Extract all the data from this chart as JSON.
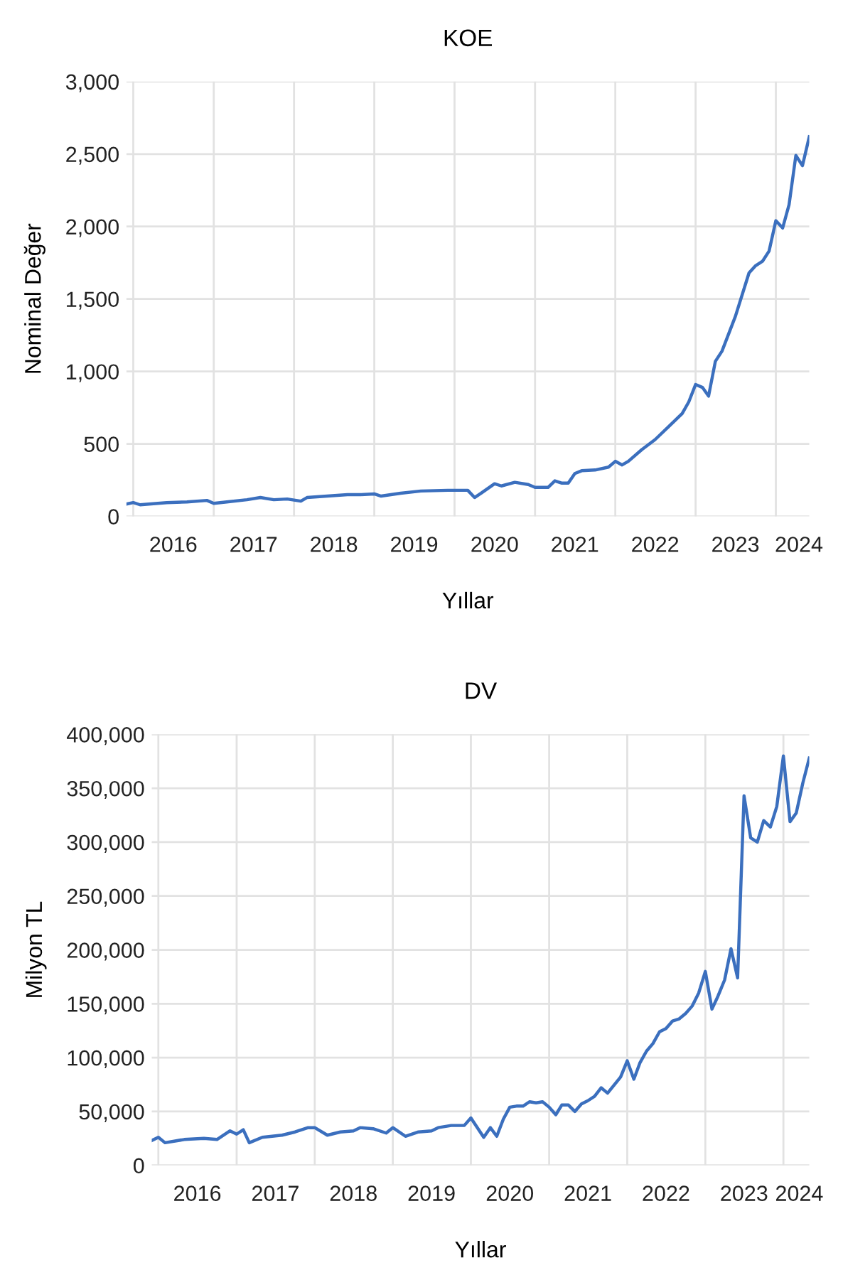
{
  "chart_data": [
    {
      "type": "line",
      "title": "KOE",
      "xlabel": "Yıllar",
      "ylabel": "Nominal Değer",
      "x": [
        "2015-12",
        "2016-01",
        "2016-02",
        "2016-06",
        "2016-09",
        "2016-12",
        "2017-01",
        "2017-03",
        "2017-06",
        "2017-08",
        "2017-10",
        "2017-12",
        "2018-02",
        "2018-03",
        "2018-06",
        "2018-09",
        "2018-11",
        "2019-01",
        "2019-02",
        "2019-05",
        "2019-08",
        "2019-12",
        "2020-03",
        "2020-04",
        "2020-05",
        "2020-07",
        "2020-08",
        "2020-10",
        "2020-12",
        "2021-01",
        "2021-03",
        "2021-04",
        "2021-05",
        "2021-06",
        "2021-07",
        "2021-08",
        "2021-10",
        "2021-12",
        "2022-01",
        "2022-02",
        "2022-03",
        "2022-05",
        "2022-07",
        "2022-09",
        "2022-11",
        "2022-12",
        "2023-01",
        "2023-02",
        "2023-03",
        "2023-04",
        "2023-05",
        "2023-07",
        "2023-09",
        "2023-10",
        "2023-11",
        "2023-12",
        "2024-01",
        "2024-02",
        "2024-03",
        "2024-04",
        "2024-05",
        "2024-06"
      ],
      "series": [
        {
          "color": "#3b6fbe",
          "values": [
            85,
            95,
            80,
            95,
            100,
            110,
            90,
            100,
            115,
            130,
            115,
            120,
            105,
            130,
            140,
            150,
            150,
            155,
            140,
            160,
            175,
            180,
            180,
            130,
            160,
            225,
            210,
            235,
            220,
            200,
            200,
            245,
            230,
            230,
            296,
            315,
            320,
            340,
            380,
            355,
            380,
            460,
            530,
            620,
            710,
            790,
            910,
            890,
            830,
            1070,
            1140,
            1380,
            1680,
            1730,
            1760,
            1830,
            2040,
            1990,
            2150,
            2490,
            2420,
            2620
          ]
        }
      ],
      "xlim": [
        "2015-12",
        "2024-06"
      ],
      "xticks": [
        {
          "value": "2016-01",
          "label": null
        },
        {
          "value": "2017-01",
          "label": null
        },
        {
          "value": "2018-01",
          "label": null
        },
        {
          "value": "2019-01",
          "label": null
        },
        {
          "value": "2020-01",
          "label": null
        },
        {
          "value": "2021-01",
          "label": null
        },
        {
          "value": "2022-01",
          "label": null
        },
        {
          "value": "2023-01",
          "label": null
        },
        {
          "value": "2024-01",
          "label": null
        },
        {
          "value": "2016-07",
          "label": "2016"
        },
        {
          "value": "2017-07",
          "label": "2017"
        },
        {
          "value": "2018-07",
          "label": "2018"
        },
        {
          "value": "2019-07",
          "label": "2019"
        },
        {
          "value": "2020-07",
          "label": "2020"
        },
        {
          "value": "2021-07",
          "label": "2021"
        },
        {
          "value": "2022-07",
          "label": "2022"
        },
        {
          "value": "2023-07",
          "label": "2023"
        },
        {
          "value": "2024-04-15",
          "label": "2024"
        }
      ],
      "ylim": [
        0,
        3000
      ],
      "yticks": [
        0,
        500,
        {
          "value": 1000,
          "label": "1,000"
        },
        {
          "value": 1500,
          "label": "1,500"
        },
        {
          "value": 2000,
          "label": "2,000"
        },
        {
          "value": 2500,
          "label": "2,500"
        },
        {
          "value": 3000,
          "label": "3,000"
        }
      ],
      "grid": true,
      "marker": "none",
      "line_style": "solid"
    },
    {
      "type": "line",
      "title": "DV",
      "xlabel": "Yıllar",
      "ylabel": "Milyon TL",
      "x": [
        "2015-12",
        "2016-01",
        "2016-02",
        "2016-05",
        "2016-08",
        "2016-10",
        "2016-12",
        "2017-01",
        "2017-02",
        "2017-03",
        "2017-05",
        "2017-08",
        "2017-10",
        "2017-12",
        "2018-01",
        "2018-03",
        "2018-05",
        "2018-07",
        "2018-08",
        "2018-10",
        "2018-12",
        "2019-01",
        "2019-03",
        "2019-05",
        "2019-07",
        "2019-08",
        "2019-10",
        "2019-12",
        "2020-01",
        "2020-03",
        "2020-04",
        "2020-05",
        "2020-06",
        "2020-07",
        "2020-08",
        "2020-09",
        "2020-10",
        "2020-11",
        "2020-12",
        "2021-01",
        "2021-02",
        "2021-03",
        "2021-04",
        "2021-05",
        "2021-06",
        "2021-07",
        "2021-08",
        "2021-09",
        "2021-10",
        "2021-12",
        "2022-01",
        "2022-02",
        "2022-03",
        "2022-04",
        "2022-05",
        "2022-06",
        "2022-07",
        "2022-08",
        "2022-09",
        "2022-10",
        "2022-11",
        "2022-12",
        "2023-01",
        "2023-02",
        "2023-03",
        "2023-04",
        "2023-05",
        "2023-06",
        "2023-07",
        "2023-08",
        "2023-09",
        "2023-10",
        "2023-11",
        "2023-12",
        "2024-01",
        "2024-02",
        "2024-03",
        "2024-04",
        "2024-05"
      ],
      "series": [
        {
          "color": "#3b6fbe",
          "values": [
            23000,
            26000,
            21000,
            24000,
            25000,
            24000,
            32000,
            29000,
            33000,
            21000,
            26000,
            28000,
            31000,
            35000,
            35000,
            28000,
            31000,
            32000,
            35000,
            34000,
            30000,
            35000,
            27000,
            31000,
            32000,
            35000,
            37000,
            37000,
            44000,
            26000,
            35000,
            27000,
            43000,
            54000,
            55000,
            55000,
            59000,
            58000,
            59000,
            54000,
            47000,
            56000,
            56000,
            50000,
            57000,
            60000,
            64000,
            72000,
            67000,
            82000,
            97000,
            80000,
            95000,
            106000,
            113000,
            124000,
            127000,
            134000,
            136000,
            141000,
            148000,
            160000,
            180000,
            145000,
            157000,
            172000,
            201000,
            174000,
            343000,
            304000,
            300000,
            320000,
            314000,
            333000,
            380000,
            319000,
            327000,
            355000,
            378000
          ]
        }
      ],
      "xlim": [
        "2015-12",
        "2024-05"
      ],
      "xticks": [
        {
          "value": "2016-01",
          "label": null
        },
        {
          "value": "2017-01",
          "label": null
        },
        {
          "value": "2018-01",
          "label": null
        },
        {
          "value": "2019-01",
          "label": null
        },
        {
          "value": "2020-01",
          "label": null
        },
        {
          "value": "2021-01",
          "label": null
        },
        {
          "value": "2022-01",
          "label": null
        },
        {
          "value": "2023-01",
          "label": null
        },
        {
          "value": "2024-01",
          "label": null
        },
        {
          "value": "2016-07",
          "label": "2016"
        },
        {
          "value": "2017-07",
          "label": "2017"
        },
        {
          "value": "2018-07",
          "label": "2018"
        },
        {
          "value": "2019-07",
          "label": "2019"
        },
        {
          "value": "2020-07",
          "label": "2020"
        },
        {
          "value": "2021-07",
          "label": "2021"
        },
        {
          "value": "2022-07",
          "label": "2022"
        },
        {
          "value": "2023-07",
          "label": "2023"
        },
        {
          "value": "2024-03-15",
          "label": "2024"
        }
      ],
      "ylim": [
        0,
        400000
      ],
      "yticks": [
        0,
        {
          "value": 50000,
          "label": "50,000"
        },
        {
          "value": 100000,
          "label": "100,000"
        },
        {
          "value": 150000,
          "label": "150,000"
        },
        {
          "value": 200000,
          "label": "200,000"
        },
        {
          "value": 250000,
          "label": "250,000"
        },
        {
          "value": 300000,
          "label": "300,000"
        },
        {
          "value": 350000,
          "label": "350,000"
        },
        {
          "value": 400000,
          "label": "400,000"
        }
      ],
      "grid": true,
      "marker": "none",
      "line_style": "solid"
    }
  ]
}
